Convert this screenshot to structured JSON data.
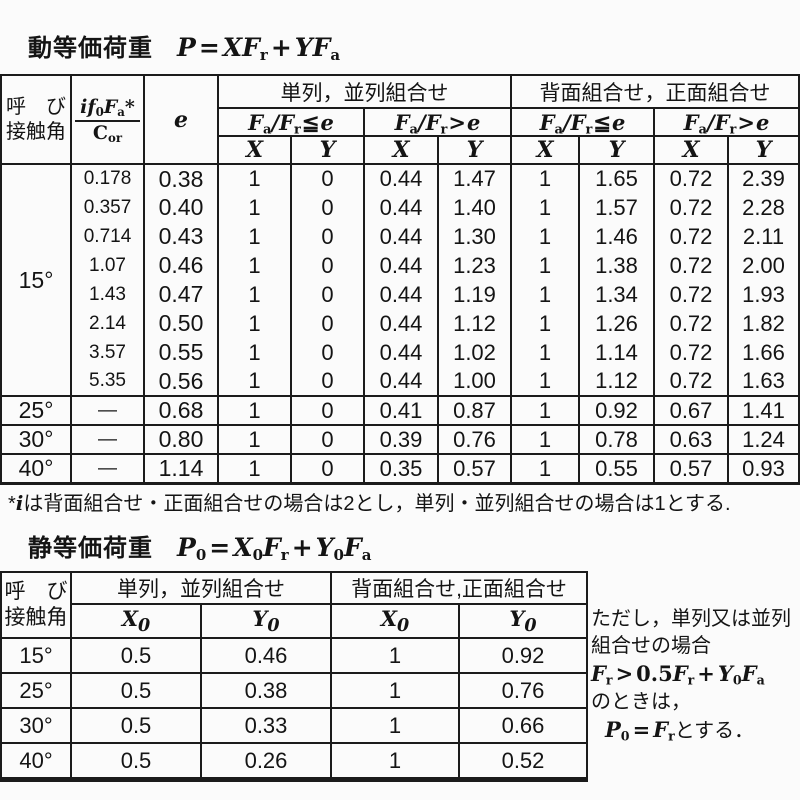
{
  "dynamic": {
    "title": "動等価荷重",
    "formula": [
      "P",
      "=",
      "XF",
      "r",
      "+",
      "YF",
      "a"
    ],
    "table": {
      "corner": [
        "呼　び",
        "接触角"
      ],
      "frac_num": [
        "i",
        "f",
        "0",
        "F",
        "a",
        "*"
      ],
      "frac_den": [
        "C",
        "or"
      ],
      "e_label": "e",
      "groups": [
        "単列，並列組合せ",
        "背面組合せ，正面組合せ"
      ],
      "cond_le": [
        "F",
        "a",
        "/",
        "F",
        "r",
        "≦",
        "e"
      ],
      "cond_gt": [
        "F",
        "a",
        "/",
        "F",
        "r",
        ">",
        "e"
      ],
      "xy": [
        "X",
        "Y"
      ],
      "sections": [
        {
          "angle": "15°",
          "rows": [
            {
              "ratio": "0.178",
              "e": "0.38",
              "vals": [
                "1",
                "0",
                "0.44",
                "1.47",
                "1",
                "1.65",
                "0.72",
                "2.39"
              ]
            },
            {
              "ratio": "0.357",
              "e": "0.40",
              "vals": [
                "1",
                "0",
                "0.44",
                "1.40",
                "1",
                "1.57",
                "0.72",
                "2.28"
              ]
            },
            {
              "ratio": "0.714",
              "e": "0.43",
              "vals": [
                "1",
                "0",
                "0.44",
                "1.30",
                "1",
                "1.46",
                "0.72",
                "2.11"
              ]
            },
            {
              "ratio": "1.07",
              "e": "0.46",
              "vals": [
                "1",
                "0",
                "0.44",
                "1.23",
                "1",
                "1.38",
                "0.72",
                "2.00"
              ]
            },
            {
              "ratio": "1.43",
              "e": "0.47",
              "vals": [
                "1",
                "0",
                "0.44",
                "1.19",
                "1",
                "1.34",
                "0.72",
                "1.93"
              ]
            },
            {
              "ratio": "2.14",
              "e": "0.50",
              "vals": [
                "1",
                "0",
                "0.44",
                "1.12",
                "1",
                "1.26",
                "0.72",
                "1.82"
              ]
            },
            {
              "ratio": "3.57",
              "e": "0.55",
              "vals": [
                "1",
                "0",
                "0.44",
                "1.02",
                "1",
                "1.14",
                "0.72",
                "1.66"
              ]
            },
            {
              "ratio": "5.35",
              "e": "0.56",
              "vals": [
                "1",
                "0",
                "0.44",
                "1.00",
                "1",
                "1.12",
                "0.72",
                "1.63"
              ]
            }
          ]
        },
        {
          "angle": "25°",
          "rows": [
            {
              "ratio": "—",
              "e": "0.68",
              "vals": [
                "1",
                "0",
                "0.41",
                "0.87",
                "1",
                "0.92",
                "0.67",
                "1.41"
              ]
            }
          ]
        },
        {
          "angle": "30°",
          "rows": [
            {
              "ratio": "—",
              "e": "0.80",
              "vals": [
                "1",
                "0",
                "0.39",
                "0.76",
                "1",
                "0.78",
                "0.63",
                "1.24"
              ]
            }
          ]
        },
        {
          "angle": "40°",
          "rows": [
            {
              "ratio": "—",
              "e": "1.14",
              "vals": [
                "1",
                "0",
                "0.35",
                "0.57",
                "1",
                "0.55",
                "0.57",
                "0.93"
              ]
            }
          ]
        }
      ]
    },
    "footnote": {
      "star": "*",
      "i": "i",
      "text": "は背面組合せ・正面組合せの場合は2とし，単列・並列組合せの場合は1とする."
    }
  },
  "static": {
    "title": "静等価荷重",
    "formula": [
      "P",
      "0",
      "=",
      "X",
      "0",
      "F",
      "r",
      "+",
      "Y",
      "0",
      "F",
      "a"
    ],
    "table": {
      "corner": [
        "呼　び",
        "接触角"
      ],
      "groups": [
        "単列，並列組合せ",
        "背面組合せ,正面組合せ"
      ],
      "sub": [
        "X",
        "0",
        "Y",
        "0"
      ],
      "rows": [
        {
          "angle": "15°",
          "vals": [
            "0.5",
            "0.46",
            "1",
            "0.92"
          ]
        },
        {
          "angle": "25°",
          "vals": [
            "0.5",
            "0.38",
            "1",
            "0.76"
          ]
        },
        {
          "angle": "30°",
          "vals": [
            "0.5",
            "0.33",
            "1",
            "0.66"
          ]
        },
        {
          "angle": "40°",
          "vals": [
            "0.5",
            "0.26",
            "1",
            "0.52"
          ]
        }
      ]
    },
    "sidenote": {
      "line1": "ただし，単列又は並列",
      "line2": "組合せの場合",
      "formula": [
        "F",
        "r",
        ">",
        "0.5",
        "F",
        "r",
        "+",
        "Y",
        "0",
        "F",
        "a"
      ],
      "line4": "のときは，",
      "result": [
        "P",
        "0",
        "=",
        "F",
        "r"
      ],
      "result_tail": "とする．"
    }
  }
}
